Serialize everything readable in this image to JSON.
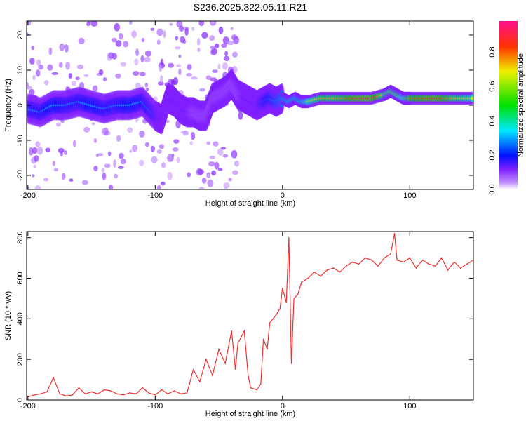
{
  "chart_data": [
    {
      "type": "heatmap",
      "title": "S236.2025.322.05.11.R21",
      "xlabel": "Height of straight line (km)",
      "ylabel": "Frequency (Hz)",
      "xlim": [
        -201,
        150
      ],
      "ylim": [
        -24,
        24
      ],
      "xticks": [
        -200,
        -100,
        0,
        100
      ],
      "yticks": [
        -20,
        -10,
        0,
        10,
        20
      ],
      "colorbar": {
        "label": "Normalized spectral amplitude",
        "range": [
          0,
          1
        ],
        "ticks": [
          "0.0",
          "0.2",
          "0.4",
          "0.6",
          "0.8"
        ],
        "colormap": [
          "#ffffff",
          "#a040ff",
          "#0000ff",
          "#00e0ff",
          "#00e000",
          "#f0f000",
          "#ff0000",
          "#ff1090"
        ]
      },
      "ridge": {
        "x": [
          -200,
          -190,
          -180,
          -170,
          -160,
          -150,
          -140,
          -130,
          -120,
          -110,
          -100,
          -95,
          -90,
          -85,
          -80,
          -75,
          -70,
          -65,
          -60,
          -55,
          -50,
          -45,
          -40,
          -35,
          -30,
          -25,
          -20,
          -15,
          -10,
          -5,
          0,
          5,
          10,
          15,
          20,
          30,
          40,
          50,
          60,
          70,
          80,
          85,
          90,
          95,
          100,
          110,
          120,
          130,
          140,
          150
        ],
        "freq": [
          -1,
          -2,
          0,
          0,
          1,
          0,
          -1,
          0,
          0,
          1,
          -3,
          -4,
          2,
          1,
          -1,
          -2,
          -2,
          -3,
          -3,
          2,
          3,
          4,
          6,
          3,
          2,
          1,
          0,
          1,
          2,
          1,
          2,
          1,
          2,
          1,
          1,
          2,
          2,
          2,
          2,
          2,
          3,
          4,
          3,
          2,
          2,
          2,
          2,
          2,
          2,
          2
        ],
        "amplitude": [
          0.3,
          0.3,
          0.35,
          0.3,
          0.3,
          0.35,
          0.3,
          0.3,
          0.35,
          0.3,
          0.25,
          0.2,
          0.2,
          0.2,
          0.2,
          0.2,
          0.15,
          0.15,
          0.15,
          0.15,
          0.15,
          0.15,
          0.15,
          0.15,
          0.2,
          0.2,
          0.2,
          0.3,
          0.35,
          0.4,
          0.45,
          0.5,
          0.5,
          0.5,
          0.6,
          0.75,
          0.75,
          0.8,
          0.9,
          0.9,
          0.7,
          0.7,
          0.7,
          0.6,
          0.8,
          0.85,
          0.9,
          0.8,
          0.7,
          0.65
        ]
      }
    },
    {
      "type": "line",
      "xlabel": "Height of straight line (km)",
      "ylabel": "SNR (10 * v/v)",
      "xlim": [
        -201,
        150
      ],
      "ylim": [
        0,
        830
      ],
      "xticks": [
        -200,
        -100,
        0,
        100
      ],
      "yticks": [
        0,
        200,
        400,
        600,
        800
      ],
      "color": "#f03030",
      "series": [
        {
          "name": "SNR",
          "x": [
            -200,
            -195,
            -190,
            -185,
            -180,
            -175,
            -170,
            -165,
            -160,
            -155,
            -150,
            -145,
            -140,
            -135,
            -130,
            -125,
            -120,
            -115,
            -110,
            -105,
            -100,
            -95,
            -90,
            -85,
            -80,
            -75,
            -70,
            -65,
            -60,
            -55,
            -50,
            -45,
            -40,
            -37,
            -35,
            -30,
            -27,
            -25,
            -20,
            -17,
            -15,
            -12,
            -10,
            -5,
            -2,
            0,
            3,
            5,
            7,
            9,
            12,
            15,
            20,
            25,
            30,
            35,
            40,
            45,
            50,
            55,
            60,
            65,
            70,
            75,
            80,
            85,
            88,
            90,
            95,
            100,
            105,
            110,
            115,
            120,
            125,
            130,
            135,
            140,
            145,
            150
          ],
          "values": [
            15,
            25,
            30,
            40,
            110,
            30,
            20,
            25,
            60,
            30,
            40,
            30,
            50,
            45,
            30,
            25,
            35,
            30,
            60,
            35,
            25,
            50,
            30,
            45,
            30,
            35,
            150,
            90,
            200,
            120,
            250,
            180,
            340,
            150,
            280,
            340,
            120,
            60,
            50,
            80,
            300,
            250,
            380,
            420,
            450,
            550,
            480,
            800,
            180,
            500,
            520,
            580,
            600,
            630,
            610,
            640,
            650,
            630,
            660,
            680,
            670,
            700,
            690,
            660,
            700,
            720,
            820,
            690,
            680,
            700,
            650,
            690,
            670,
            660,
            700,
            640,
            680,
            650,
            670,
            690
          ]
        }
      ]
    }
  ]
}
